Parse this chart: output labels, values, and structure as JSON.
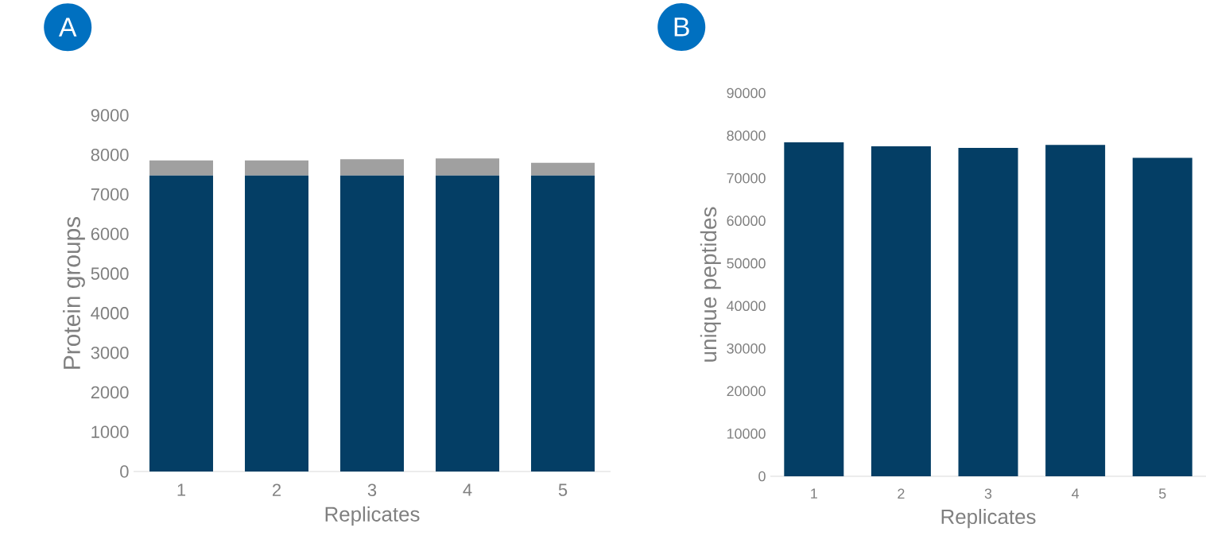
{
  "chart_data": [
    {
      "type": "bar",
      "title": "A",
      "xlabel": "Replicates",
      "ylabel": "Protein groups",
      "categories": [
        "1",
        "2",
        "3",
        "4",
        "5"
      ],
      "stacked": true,
      "series": [
        {
          "color": "#043e65",
          "values": [
            7480,
            7480,
            7480,
            7480,
            7480
          ]
        },
        {
          "color": "#a0a0a0",
          "values": [
            380,
            380,
            410,
            430,
            320
          ]
        }
      ],
      "ylim": [
        0,
        9000
      ],
      "yticks": [
        0,
        1000,
        2000,
        3000,
        4000,
        5000,
        6000,
        7000,
        8000,
        9000
      ]
    },
    {
      "type": "bar",
      "title": "B",
      "xlabel": "Replicates",
      "ylabel": "unique peptides",
      "categories": [
        "1",
        "2",
        "3",
        "4",
        "5"
      ],
      "series": [
        {
          "color": "#043e65",
          "values": [
            78400,
            77500,
            77100,
            77800,
            74800
          ]
        }
      ],
      "ylim": [
        0,
        90000
      ],
      "yticks": [
        0,
        10000,
        20000,
        30000,
        40000,
        50000,
        60000,
        70000,
        80000,
        90000
      ]
    }
  ]
}
